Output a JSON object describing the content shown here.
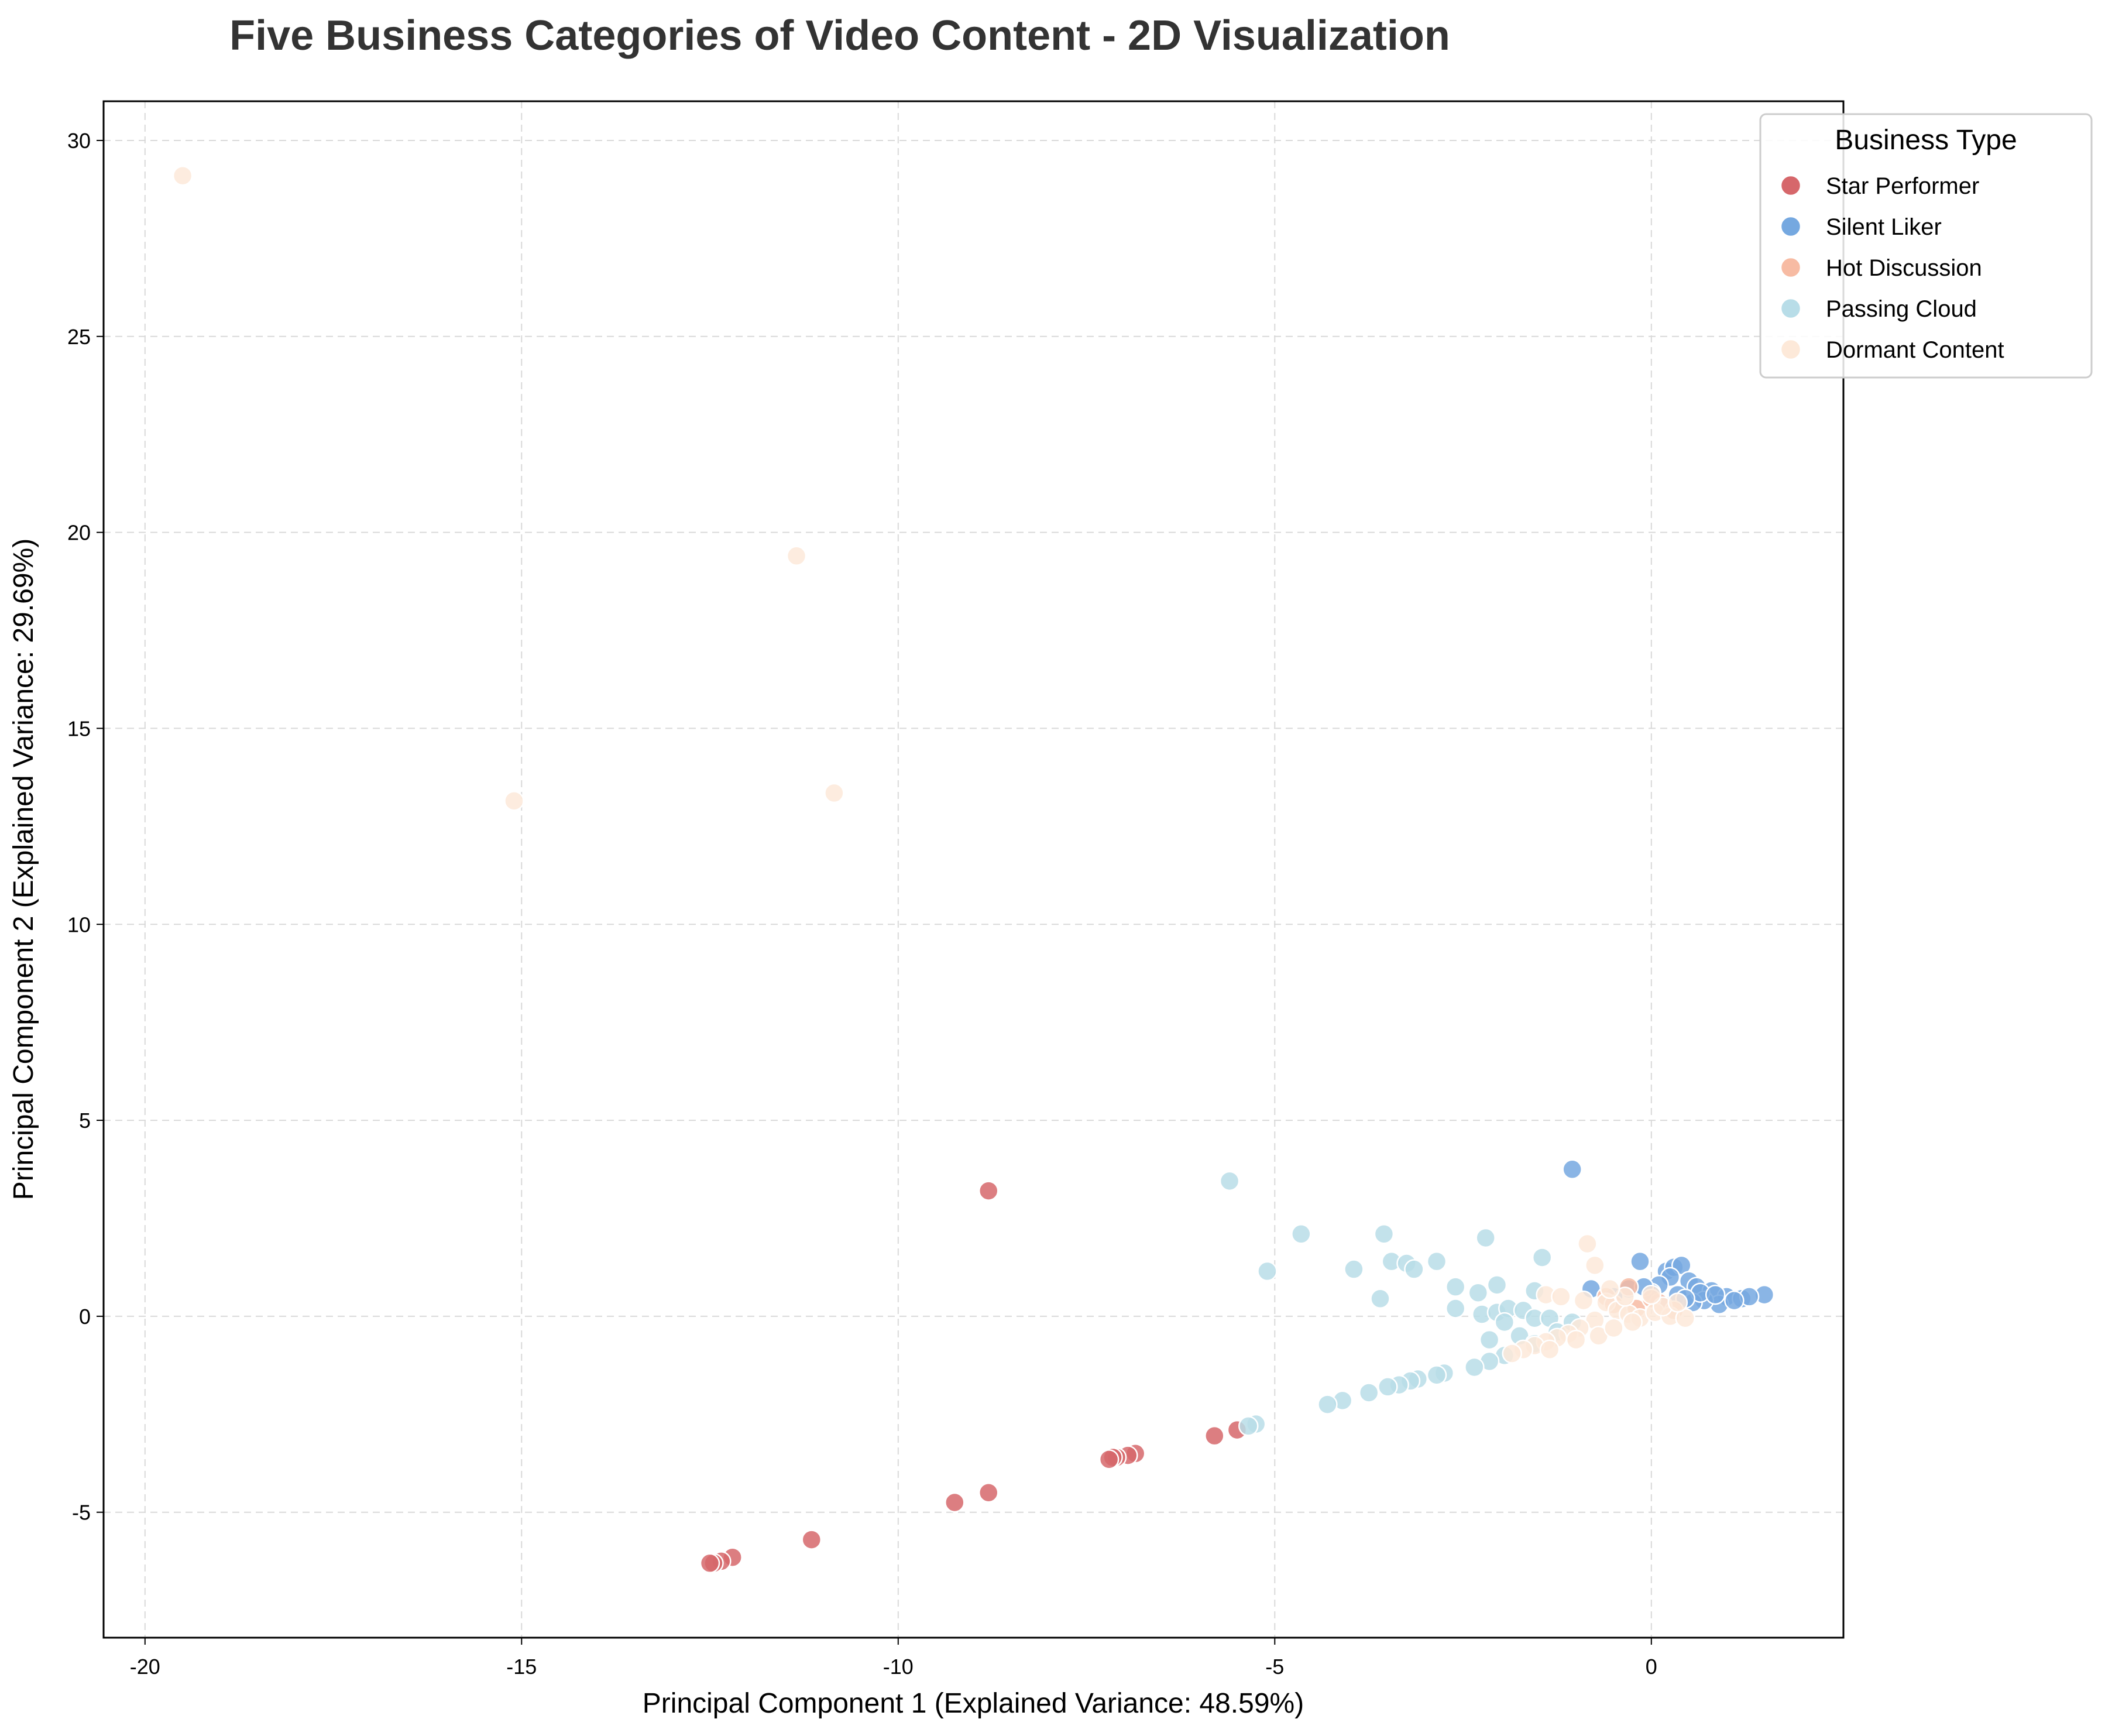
{
  "chart_data": {
    "type": "scatter",
    "title": "Five Business Categories of Video Content - 2D Visualization",
    "xlabel": "Principal Component 1 (Explained Variance: 48.59%)",
    "ylabel": "Principal Component 2 (Explained Variance: 29.69%)",
    "xlim": [
      -20.55,
      2.55
    ],
    "ylim": [
      -8.2,
      31.0
    ],
    "xticks": [
      -20,
      -15,
      -10,
      -5,
      0
    ],
    "xtick_labels": [
      "-20",
      "-15",
      "-10",
      "-5",
      "0"
    ],
    "yticks": [
      -5,
      0,
      5,
      10,
      15,
      20,
      25,
      30
    ],
    "ytick_labels": [
      "-5",
      "0",
      "5",
      "10",
      "15",
      "20",
      "25",
      "30"
    ],
    "grid": true,
    "legend_title": "Business Type",
    "legend_position": "upper-right-outside",
    "series": [
      {
        "name": "Star Performer",
        "color": "#d6676b",
        "points": [
          [
            -8.8,
            3.2
          ],
          [
            -5.5,
            -2.9
          ],
          [
            -5.8,
            -3.05
          ],
          [
            -6.85,
            -3.5
          ],
          [
            -6.95,
            -3.55
          ],
          [
            -7.1,
            -3.6
          ],
          [
            -7.15,
            -3.6
          ],
          [
            -7.2,
            -3.65
          ],
          [
            -8.8,
            -4.5
          ],
          [
            -9.25,
            -4.75
          ],
          [
            -11.15,
            -5.7
          ],
          [
            -12.2,
            -6.15
          ],
          [
            -12.35,
            -6.25
          ],
          [
            -12.45,
            -6.3
          ],
          [
            -12.5,
            -6.3
          ]
        ]
      },
      {
        "name": "Silent Liker",
        "color": "#75a8e0",
        "points": [
          [
            -1.05,
            3.75
          ],
          [
            -0.15,
            1.4
          ],
          [
            0.2,
            1.15
          ],
          [
            0.3,
            1.25
          ],
          [
            0.4,
            1.3
          ],
          [
            0.25,
            1.0
          ],
          [
            0.1,
            0.8
          ],
          [
            0.5,
            0.9
          ],
          [
            0.6,
            0.75
          ],
          [
            0.8,
            0.65
          ],
          [
            1.0,
            0.5
          ],
          [
            1.2,
            0.45
          ],
          [
            1.5,
            0.55
          ],
          [
            1.3,
            0.5
          ],
          [
            0.9,
            0.3
          ],
          [
            0.7,
            0.4
          ],
          [
            0.0,
            0.6
          ],
          [
            -0.3,
            0.7
          ],
          [
            -0.8,
            0.7
          ],
          [
            -0.5,
            0.5
          ],
          [
            0.35,
            0.55
          ],
          [
            0.55,
            0.35
          ],
          [
            1.1,
            0.4
          ],
          [
            0.15,
            0.3
          ],
          [
            -0.1,
            0.75
          ],
          [
            0.65,
            0.6
          ],
          [
            0.45,
            0.45
          ],
          [
            0.85,
            0.55
          ]
        ]
      },
      {
        "name": "Hot Discussion",
        "color": "#f7bba3",
        "points": [
          [
            -0.3,
            0.75
          ],
          [
            -0.6,
            0.5
          ],
          [
            0.1,
            0.35
          ],
          [
            -0.2,
            0.2
          ],
          [
            0.3,
            0.15
          ],
          [
            -0.5,
            0.3
          ],
          [
            0.0,
            0.45
          ]
        ]
      },
      {
        "name": "Passing Cloud",
        "color": "#b8dde8",
        "points": [
          [
            -5.6,
            3.45
          ],
          [
            -4.65,
            2.1
          ],
          [
            -3.55,
            2.1
          ],
          [
            -2.2,
            2.0
          ],
          [
            -5.1,
            1.15
          ],
          [
            -3.95,
            1.2
          ],
          [
            -3.45,
            1.4
          ],
          [
            -3.25,
            1.35
          ],
          [
            -3.15,
            1.2
          ],
          [
            -2.85,
            1.4
          ],
          [
            -1.45,
            1.5
          ],
          [
            -3.6,
            0.45
          ],
          [
            -2.6,
            0.75
          ],
          [
            -2.3,
            0.6
          ],
          [
            -2.05,
            0.8
          ],
          [
            -1.55,
            0.65
          ],
          [
            -2.6,
            0.2
          ],
          [
            -2.25,
            0.05
          ],
          [
            -2.05,
            0.1
          ],
          [
            -1.9,
            0.2
          ],
          [
            -1.7,
            0.15
          ],
          [
            -1.55,
            -0.05
          ],
          [
            -1.35,
            -0.05
          ],
          [
            -1.95,
            -0.15
          ],
          [
            -2.15,
            -0.6
          ],
          [
            -1.75,
            -0.5
          ],
          [
            -1.55,
            -0.7
          ],
          [
            -1.95,
            -1.0
          ],
          [
            -2.15,
            -1.15
          ],
          [
            -2.35,
            -1.3
          ],
          [
            -2.75,
            -1.45
          ],
          [
            -2.85,
            -1.5
          ],
          [
            -3.1,
            -1.6
          ],
          [
            -3.2,
            -1.65
          ],
          [
            -3.35,
            -1.75
          ],
          [
            -3.5,
            -1.8
          ],
          [
            -3.75,
            -1.95
          ],
          [
            -4.1,
            -2.15
          ],
          [
            -4.3,
            -2.25
          ],
          [
            -5.25,
            -2.75
          ],
          [
            -5.35,
            -2.8
          ],
          [
            -1.25,
            -0.4
          ],
          [
            -1.05,
            -0.15
          ]
        ]
      },
      {
        "name": "Dormant Content",
        "color": "#fde9d9",
        "points": [
          [
            -19.5,
            29.1
          ],
          [
            -11.35,
            19.4
          ],
          [
            -10.85,
            13.35
          ],
          [
            -15.1,
            13.15
          ],
          [
            -0.85,
            1.85
          ],
          [
            -0.75,
            1.3
          ],
          [
            -1.4,
            0.55
          ],
          [
            -1.2,
            0.5
          ],
          [
            -0.9,
            0.4
          ],
          [
            -0.6,
            0.35
          ],
          [
            -0.45,
            0.15
          ],
          [
            -0.3,
            0.05
          ],
          [
            -0.15,
            -0.05
          ],
          [
            0.05,
            0.1
          ],
          [
            0.25,
            0.0
          ],
          [
            0.45,
            -0.05
          ],
          [
            -0.75,
            -0.1
          ],
          [
            -0.95,
            -0.3
          ],
          [
            -1.1,
            -0.45
          ],
          [
            -1.25,
            -0.55
          ],
          [
            -1.4,
            -0.65
          ],
          [
            -1.55,
            -0.75
          ],
          [
            -1.7,
            -0.85
          ],
          [
            -1.85,
            -0.95
          ],
          [
            -1.35,
            -0.85
          ],
          [
            -1.0,
            -0.6
          ],
          [
            -0.7,
            -0.5
          ],
          [
            -0.5,
            -0.3
          ],
          [
            -0.25,
            -0.15
          ],
          [
            0.15,
            0.25
          ],
          [
            0.35,
            0.35
          ],
          [
            -0.35,
            0.5
          ],
          [
            -0.55,
            0.7
          ],
          [
            0.0,
            0.55
          ]
        ]
      }
    ]
  }
}
